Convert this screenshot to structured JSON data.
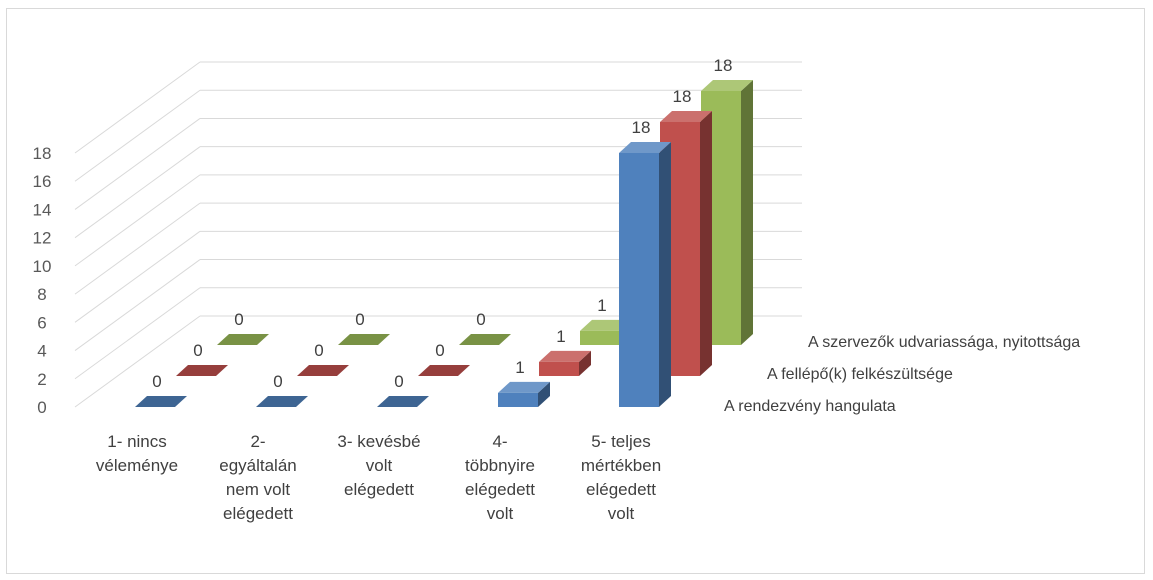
{
  "chart_data": {
    "type": "bar",
    "subtype": "3d-column",
    "title": "",
    "xlabel": "",
    "ylabel": "",
    "ylim": [
      0,
      18
    ],
    "yticks": [
      0,
      2,
      4,
      6,
      8,
      10,
      12,
      14,
      16,
      18
    ],
    "grid": true,
    "categories": [
      [
        "1- nincs",
        "véleménye"
      ],
      [
        "2-",
        "egyáltalán",
        "nem volt",
        "elégedett"
      ],
      [
        "3- kevésbé",
        "volt",
        "elégedett"
      ],
      [
        "4-",
        "többnyire",
        "elégedett",
        "volt"
      ],
      [
        "5- teljes",
        "mértékben",
        "elégedett",
        "volt"
      ]
    ],
    "series": [
      {
        "name": "A rendezvény hangulata",
        "values": [
          0,
          0,
          0,
          1,
          18
        ],
        "color": "#4f81bd"
      },
      {
        "name": "A fellépő(k) felkészültsége",
        "values": [
          0,
          0,
          0,
          1,
          18
        ],
        "color": "#c0504d"
      },
      {
        "name": "A szervezők udvariassága, nyitottsága",
        "values": [
          0,
          0,
          0,
          1,
          18
        ],
        "color": "#9bbb59"
      }
    ]
  }
}
